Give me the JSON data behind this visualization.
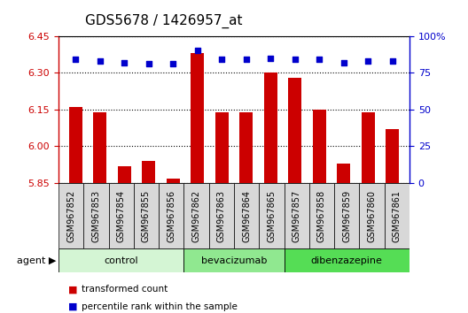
{
  "title": "GDS5678 / 1426957_at",
  "samples": [
    "GSM967852",
    "GSM967853",
    "GSM967854",
    "GSM967855",
    "GSM967856",
    "GSM967862",
    "GSM967863",
    "GSM967864",
    "GSM967865",
    "GSM967857",
    "GSM967858",
    "GSM967859",
    "GSM967860",
    "GSM967861"
  ],
  "bar_values": [
    6.16,
    6.14,
    5.92,
    5.94,
    5.87,
    6.38,
    6.14,
    6.14,
    6.3,
    6.28,
    6.15,
    5.93,
    6.14,
    6.07
  ],
  "dot_values": [
    84,
    83,
    82,
    81,
    81,
    90,
    84,
    84,
    85,
    84,
    84,
    82,
    83,
    83
  ],
  "groups": [
    {
      "label": "control",
      "start": 0,
      "end": 5,
      "color": "#d4f5d4"
    },
    {
      "label": "bevacizumab",
      "start": 5,
      "end": 9,
      "color": "#90e890"
    },
    {
      "label": "dibenzazepine",
      "start": 9,
      "end": 14,
      "color": "#55dd55"
    }
  ],
  "ylim_left": [
    5.85,
    6.45
  ],
  "ylim_right": [
    0,
    100
  ],
  "yticks_left": [
    5.85,
    6.0,
    6.15,
    6.3,
    6.45
  ],
  "yticks_right": [
    0,
    25,
    50,
    75,
    100
  ],
  "bar_color": "#cc0000",
  "dot_color": "#0000cc",
  "bar_bottom": 5.85,
  "legend_bar": "transformed count",
  "legend_dot": "percentile rank within the sample",
  "title_fontsize": 11,
  "tick_fontsize": 8,
  "label_fontsize": 7
}
